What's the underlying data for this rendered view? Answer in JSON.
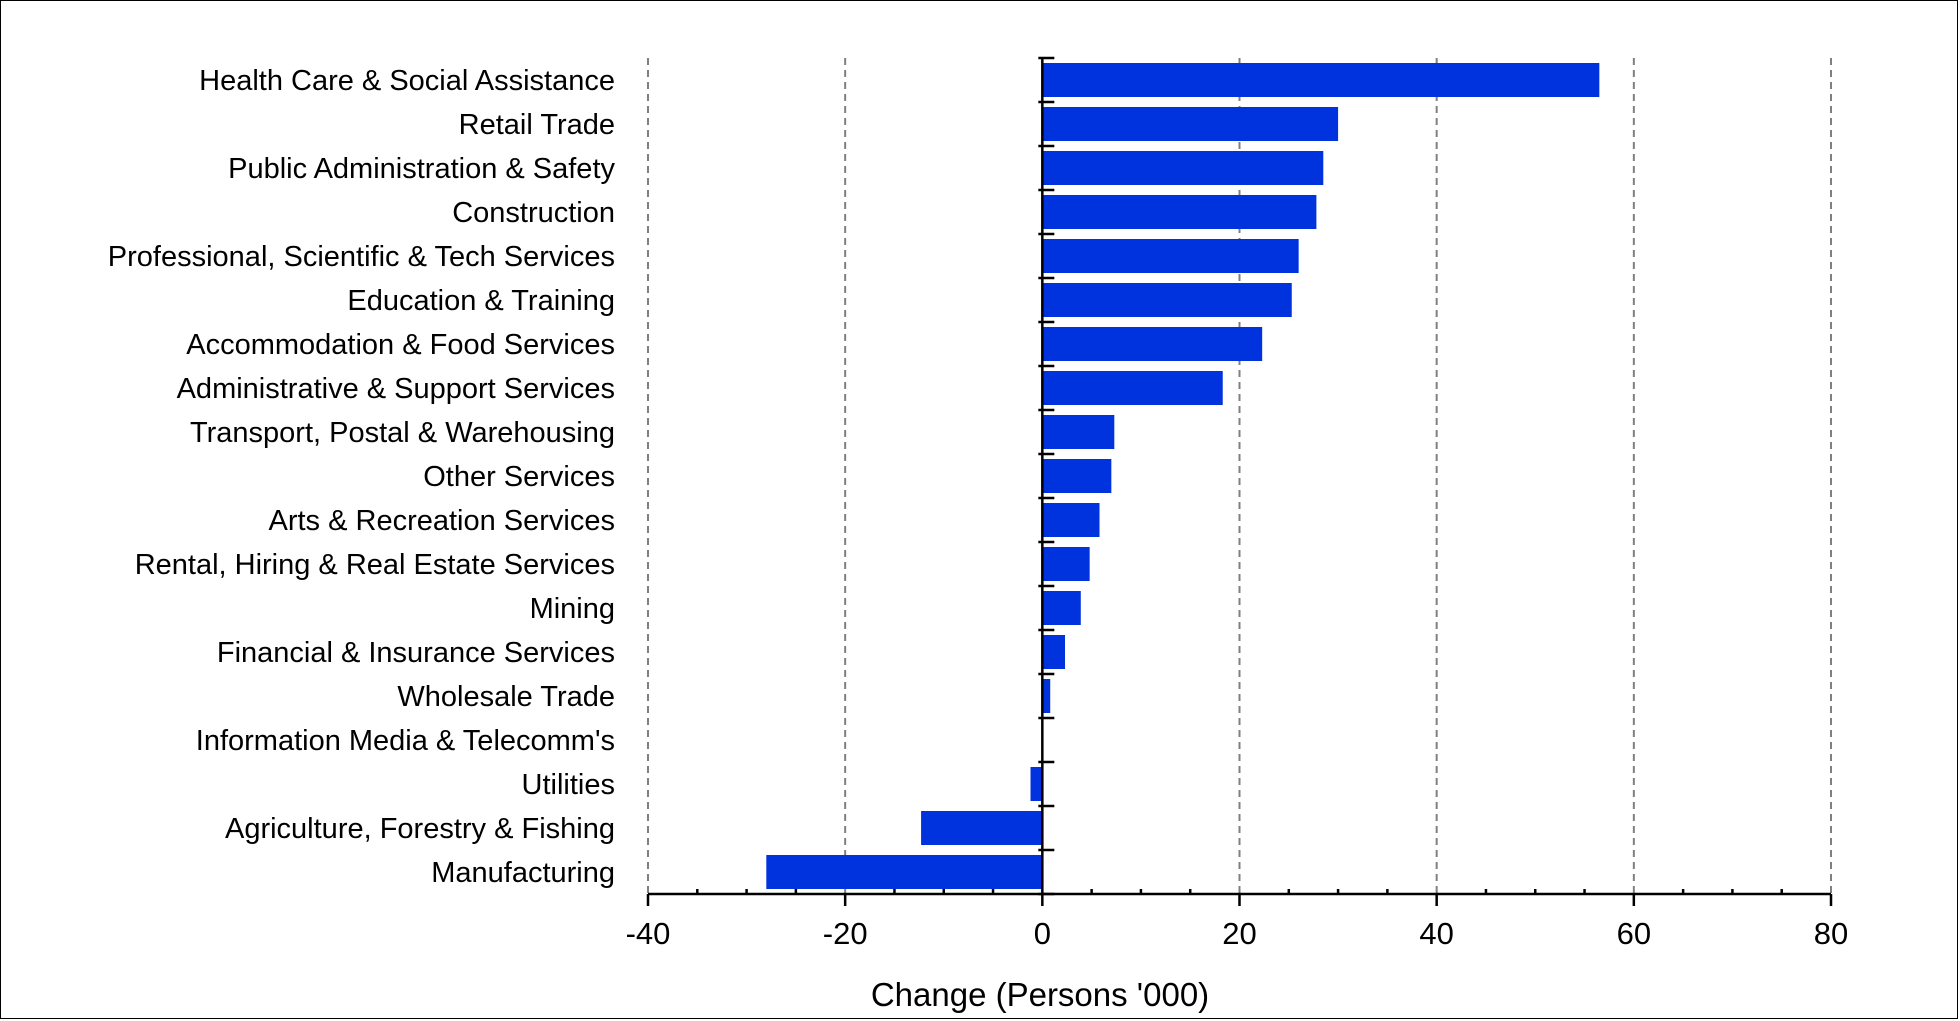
{
  "chart_data": {
    "type": "bar",
    "orientation": "horizontal",
    "title": "",
    "xlabel": "Change (Persons '000)",
    "ylabel": "",
    "xlim": [
      -40,
      80
    ],
    "xticks": [
      -40,
      -20,
      0,
      20,
      40,
      60,
      80
    ],
    "grid": "vertical dashed",
    "bar_color": "#0033dd",
    "categories": [
      "Health Care & Social Assistance",
      "Retail Trade",
      "Public Administration & Safety",
      "Construction",
      "Professional, Scientific & Tech Services",
      "Education & Training",
      "Accommodation & Food Services",
      "Administrative & Support Services",
      "Transport, Postal & Warehousing",
      "Other Services",
      "Arts & Recreation Services",
      "Rental, Hiring & Real Estate Services",
      "Mining",
      "Financial & Insurance Services",
      "Wholesale Trade",
      "Information Media & Telecomm's",
      "Utilities",
      "Agriculture, Forestry & Fishing",
      "Manufacturing"
    ],
    "values": [
      56.5,
      30.0,
      28.5,
      27.8,
      26.0,
      25.3,
      22.3,
      18.3,
      7.3,
      7.0,
      5.8,
      4.8,
      3.9,
      2.3,
      0.8,
      0.0,
      -1.2,
      -12.3,
      -28.0
    ]
  }
}
